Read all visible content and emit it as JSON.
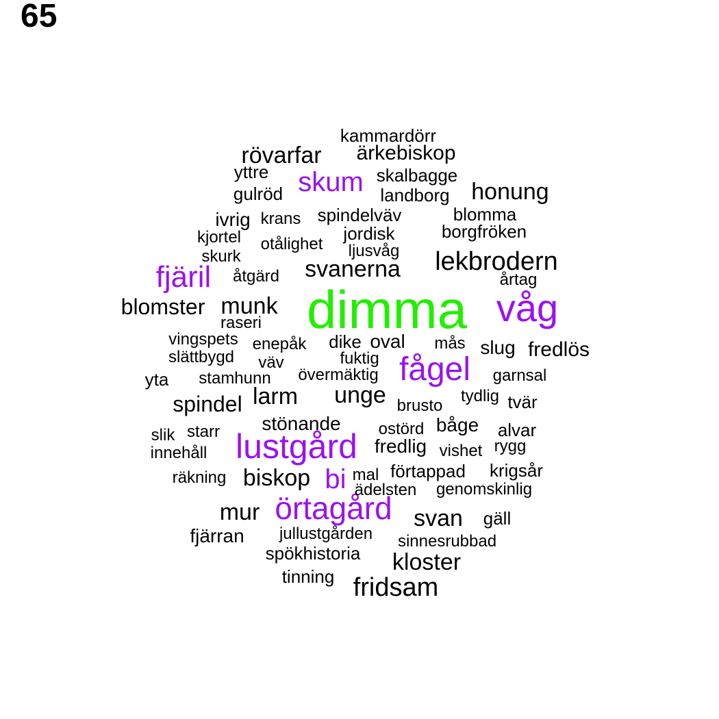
{
  "label": "65",
  "colors": {
    "primary": "#22ee00",
    "accent": "#9a12f0",
    "default": "#000000"
  },
  "words": [
    {
      "text": "dimma",
      "color": "primary"
    },
    {
      "text": "våg",
      "color": "accent"
    },
    {
      "text": "lustgård",
      "color": "accent"
    },
    {
      "text": "fågel",
      "color": "accent"
    },
    {
      "text": "örtagård",
      "color": "accent"
    },
    {
      "text": "fjäril",
      "color": "accent"
    },
    {
      "text": "skum",
      "color": "accent"
    },
    {
      "text": "bi",
      "color": "accent"
    },
    {
      "text": "lekbrodern",
      "color": "default"
    },
    {
      "text": "fridsam",
      "color": "default"
    },
    {
      "text": "rövarfar",
      "color": "default"
    },
    {
      "text": "honung",
      "color": "default"
    },
    {
      "text": "svanerna",
      "color": "default"
    },
    {
      "text": "munk",
      "color": "default"
    },
    {
      "text": "unge",
      "color": "default"
    },
    {
      "text": "biskop",
      "color": "default"
    },
    {
      "text": "mur",
      "color": "default"
    },
    {
      "text": "svan",
      "color": "default"
    },
    {
      "text": "kloster",
      "color": "default"
    },
    {
      "text": "larm",
      "color": "default"
    },
    {
      "text": "spindel",
      "color": "default"
    },
    {
      "text": "blomster",
      "color": "default"
    },
    {
      "text": "fredlös",
      "color": "default"
    },
    {
      "text": "ärkebiskop",
      "color": "default"
    },
    {
      "text": "stönande",
      "color": "default"
    },
    {
      "text": "fredlig",
      "color": "default"
    },
    {
      "text": "kammardörr",
      "color": "default"
    },
    {
      "text": "yttre",
      "color": "default"
    },
    {
      "text": "skalbagge",
      "color": "default"
    },
    {
      "text": "gulröd",
      "color": "default"
    },
    {
      "text": "landborg",
      "color": "default"
    },
    {
      "text": "ivrig",
      "color": "default"
    },
    {
      "text": "krans",
      "color": "default"
    },
    {
      "text": "spindelväv",
      "color": "default"
    },
    {
      "text": "blomma",
      "color": "default"
    },
    {
      "text": "kjortel",
      "color": "default"
    },
    {
      "text": "jordisk",
      "color": "default"
    },
    {
      "text": "borgfröken",
      "color": "default"
    },
    {
      "text": "otålighet",
      "color": "default"
    },
    {
      "text": "ljusvåg",
      "color": "default"
    },
    {
      "text": "skurk",
      "color": "default"
    },
    {
      "text": "åtgärd",
      "color": "default"
    },
    {
      "text": "årtag",
      "color": "default"
    },
    {
      "text": "raseri",
      "color": "default"
    },
    {
      "text": "vingspets",
      "color": "default"
    },
    {
      "text": "enepåk",
      "color": "default"
    },
    {
      "text": "dike",
      "color": "default"
    },
    {
      "text": "oval",
      "color": "default"
    },
    {
      "text": "mås",
      "color": "default"
    },
    {
      "text": "slug",
      "color": "default"
    },
    {
      "text": "slättbygd",
      "color": "default"
    },
    {
      "text": "väv",
      "color": "default"
    },
    {
      "text": "fuktig",
      "color": "default"
    },
    {
      "text": "yta",
      "color": "default"
    },
    {
      "text": "stamhunn",
      "color": "default"
    },
    {
      "text": "övermäktig",
      "color": "default"
    },
    {
      "text": "garnsal",
      "color": "default"
    },
    {
      "text": "tydlig",
      "color": "default"
    },
    {
      "text": "tvär",
      "color": "default"
    },
    {
      "text": "brusto",
      "color": "default"
    },
    {
      "text": "ostörd",
      "color": "default"
    },
    {
      "text": "båge",
      "color": "default"
    },
    {
      "text": "alvar",
      "color": "default"
    },
    {
      "text": "slik",
      "color": "default"
    },
    {
      "text": "starr",
      "color": "default"
    },
    {
      "text": "innehåll",
      "color": "default"
    },
    {
      "text": "vishet",
      "color": "default"
    },
    {
      "text": "rygg",
      "color": "default"
    },
    {
      "text": "räkning",
      "color": "default"
    },
    {
      "text": "mal",
      "color": "default"
    },
    {
      "text": "förtappad",
      "color": "default"
    },
    {
      "text": "krigsår",
      "color": "default"
    },
    {
      "text": "ädelsten",
      "color": "default"
    },
    {
      "text": "genomskinlig",
      "color": "default"
    },
    {
      "text": "gäll",
      "color": "default"
    },
    {
      "text": "fjärran",
      "color": "default"
    },
    {
      "text": "jullustgården",
      "color": "default"
    },
    {
      "text": "sinnesrubbad",
      "color": "default"
    },
    {
      "text": "spökhistoria",
      "color": "default"
    },
    {
      "text": "tinning",
      "color": "default"
    }
  ]
}
